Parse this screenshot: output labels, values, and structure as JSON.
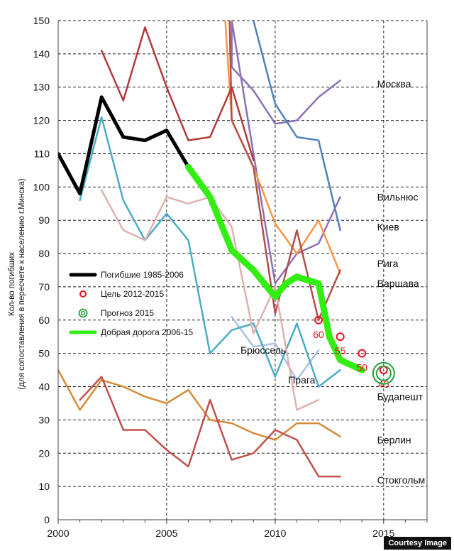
{
  "chart_data": {
    "type": "line",
    "ylabel_line1": "Кол-во погибших",
    "ylabel_line2": "(для сопоставления в пересчете к населению г.Минска)",
    "xlim": [
      2000,
      2017
    ],
    "ylim": [
      0,
      150
    ],
    "x_ticks": [
      "2000",
      "2005",
      "2010",
      "2015"
    ],
    "y_ticks": [
      "0",
      "10",
      "20",
      "30",
      "40",
      "50",
      "60",
      "70",
      "80",
      "90",
      "100",
      "110",
      "120",
      "130",
      "140",
      "150"
    ],
    "grid": "horizontal dashed",
    "legend_position": "left-middle",
    "legend": [
      {
        "label": "Погибшие 1985-2006",
        "type": "line",
        "color": "#000000"
      },
      {
        "label": "Цель 2012-2015",
        "type": "ring",
        "color": "#e8141c"
      },
      {
        "label": "Прогноз 2015",
        "type": "double-ring",
        "color": "#22a33a"
      },
      {
        "label": "Добрая дорога 2006-15",
        "type": "line",
        "color": "#33ee11"
      }
    ],
    "series": [
      {
        "name": "Погибшие 1985-2006",
        "color": "#000000",
        "width": 5,
        "points": [
          [
            2000,
            110
          ],
          [
            2001,
            98
          ],
          [
            2002,
            127
          ],
          [
            2003,
            115
          ],
          [
            2004,
            114
          ],
          [
            2005,
            117
          ],
          [
            2006,
            106
          ]
        ]
      },
      {
        "name": "Добрая дорога 2006-15",
        "color": "#33ee11",
        "width": 9,
        "points": [
          [
            2006,
            106
          ],
          [
            2007,
            97
          ],
          [
            2008,
            81
          ],
          [
            2009,
            75
          ],
          [
            2010,
            67
          ],
          [
            2010.5,
            71
          ],
          [
            2011,
            73
          ],
          [
            2012,
            71
          ],
          [
            2012.5,
            55
          ],
          [
            2013,
            48
          ],
          [
            2014,
            45
          ]
        ]
      },
      {
        "name": "Москва",
        "color": "#8a70b8",
        "width": 2.5,
        "points": [
          [
            2008,
            150
          ],
          [
            2008,
            136
          ],
          [
            2009,
            129
          ],
          [
            2010,
            119
          ],
          [
            2011,
            120
          ],
          [
            2012,
            127
          ],
          [
            2013,
            132
          ]
        ]
      },
      {
        "name": "Вильнюс",
        "color": "#8a70b8",
        "width": 2.5,
        "points": [
          [
            2008,
            150
          ],
          [
            2009,
            110
          ],
          [
            2010,
            71
          ],
          [
            2011,
            80
          ],
          [
            2012,
            83
          ],
          [
            2013,
            97
          ]
        ]
      },
      {
        "name": "Киев",
        "color": "#4f81bd",
        "width": 2.5,
        "points": [
          [
            2009,
            150
          ],
          [
            2010,
            125
          ],
          [
            2011,
            115
          ],
          [
            2012,
            114
          ],
          [
            2013,
            87
          ]
        ]
      },
      {
        "name": "Рига",
        "color": "#f79646",
        "width": 2.5,
        "points": [
          [
            2007.7,
            150
          ],
          [
            2008,
            120
          ],
          [
            2009,
            106
          ],
          [
            2010,
            89
          ],
          [
            2011,
            80
          ],
          [
            2012,
            90
          ],
          [
            2013,
            74
          ]
        ]
      },
      {
        "name": "Варшава",
        "color": "#b0504a",
        "width": 2.5,
        "points": [
          [
            2007.9,
            150
          ],
          [
            2008,
            120
          ],
          [
            2009,
            106
          ],
          [
            2010,
            62
          ],
          [
            2011,
            87
          ],
          [
            2012,
            60
          ],
          [
            2013,
            75
          ]
        ]
      },
      {
        "name": "Брюссель",
        "color": "#aac2df",
        "width": 2.5,
        "points": [
          [
            2008,
            61
          ],
          [
            2009,
            52
          ],
          [
            2010,
            53
          ],
          [
            2011,
            42
          ],
          [
            2012,
            51
          ]
        ]
      },
      {
        "name": "Прага",
        "color": "#4bacc6",
        "width": 2.5,
        "points": [
          [
            2001,
            96
          ],
          [
            2002,
            121
          ],
          [
            2003,
            96
          ],
          [
            2004,
            84
          ],
          [
            2005,
            92
          ],
          [
            2006,
            84
          ],
          [
            2007,
            50
          ],
          [
            2008,
            57
          ],
          [
            2009,
            59
          ],
          [
            2010,
            43
          ],
          [
            2011,
            59
          ],
          [
            2012,
            40
          ],
          [
            2013,
            45
          ]
        ]
      },
      {
        "name": "Будапешт",
        "color": "#e0b0b0",
        "width": 2.5,
        "points": [
          [
            2002,
            99
          ],
          [
            2003,
            87
          ],
          [
            2004,
            84
          ],
          [
            2005,
            97
          ],
          [
            2006,
            95
          ],
          [
            2007,
            97
          ],
          [
            2008,
            88
          ],
          [
            2009,
            56
          ],
          [
            2010,
            70
          ],
          [
            2011,
            33
          ],
          [
            2012,
            36
          ]
        ]
      },
      {
        "name": "",
        "color": "#b03a3a",
        "width": 2.5,
        "points": [
          [
            2002,
            141
          ],
          [
            2003,
            126
          ],
          [
            2004,
            148
          ],
          [
            2005,
            130
          ],
          [
            2006,
            114
          ],
          [
            2007,
            115
          ],
          [
            2008,
            130
          ],
          [
            2009,
            108
          ]
        ]
      },
      {
        "name": "Берлин",
        "color": "#d68a3a",
        "width": 2.5,
        "points": [
          [
            2000,
            45
          ],
          [
            2001,
            33
          ],
          [
            2002,
            42
          ],
          [
            2003,
            40
          ],
          [
            2004,
            37
          ],
          [
            2005,
            35
          ],
          [
            2006,
            39
          ],
          [
            2007,
            30
          ],
          [
            2008,
            29
          ],
          [
            2009,
            26
          ],
          [
            2010,
            24
          ],
          [
            2011,
            29
          ],
          [
            2012,
            29
          ],
          [
            2013,
            25
          ]
        ]
      },
      {
        "name": "Стокгольм",
        "color": "#c0504d",
        "width": 2.5,
        "points": [
          [
            2001,
            36
          ],
          [
            2002,
            43
          ],
          [
            2003,
            27
          ],
          [
            2004,
            27
          ],
          [
            2005,
            21
          ],
          [
            2006,
            16
          ],
          [
            2007,
            36
          ],
          [
            2008,
            18
          ],
          [
            2009,
            20
          ],
          [
            2010,
            27
          ],
          [
            2011,
            24
          ],
          [
            2012,
            13
          ],
          [
            2013,
            13
          ]
        ]
      }
    ],
    "city_labels": [
      {
        "text": "Москва",
        "x": 2014.7,
        "y": 131
      },
      {
        "text": "Вильнюс",
        "x": 2014.7,
        "y": 97
      },
      {
        "text": "Киев",
        "x": 2014.7,
        "y": 88
      },
      {
        "text": "Рига",
        "x": 2014.7,
        "y": 77
      },
      {
        "text": "Варшава",
        "x": 2014.7,
        "y": 71
      },
      {
        "text": "Брюссель",
        "x": 2008.4,
        "y": 51
      },
      {
        "text": "Прага",
        "x": 2010.6,
        "y": 42
      },
      {
        "text": "Будапешт",
        "x": 2014.7,
        "y": 37
      },
      {
        "text": "Берлин",
        "x": 2014.7,
        "y": 24
      },
      {
        "text": "Стокгольм",
        "x": 2014.7,
        "y": 12
      }
    ],
    "targets": [
      {
        "x": 2012,
        "y": 60,
        "label": "60"
      },
      {
        "x": 2013,
        "y": 55,
        "label": "55"
      },
      {
        "x": 2014,
        "y": 50,
        "label": "50"
      },
      {
        "x": 2015,
        "y": 45,
        "label": "45"
      }
    ],
    "forecast": {
      "x": 2015,
      "y": 44
    }
  },
  "credit": "Courtesy Image"
}
